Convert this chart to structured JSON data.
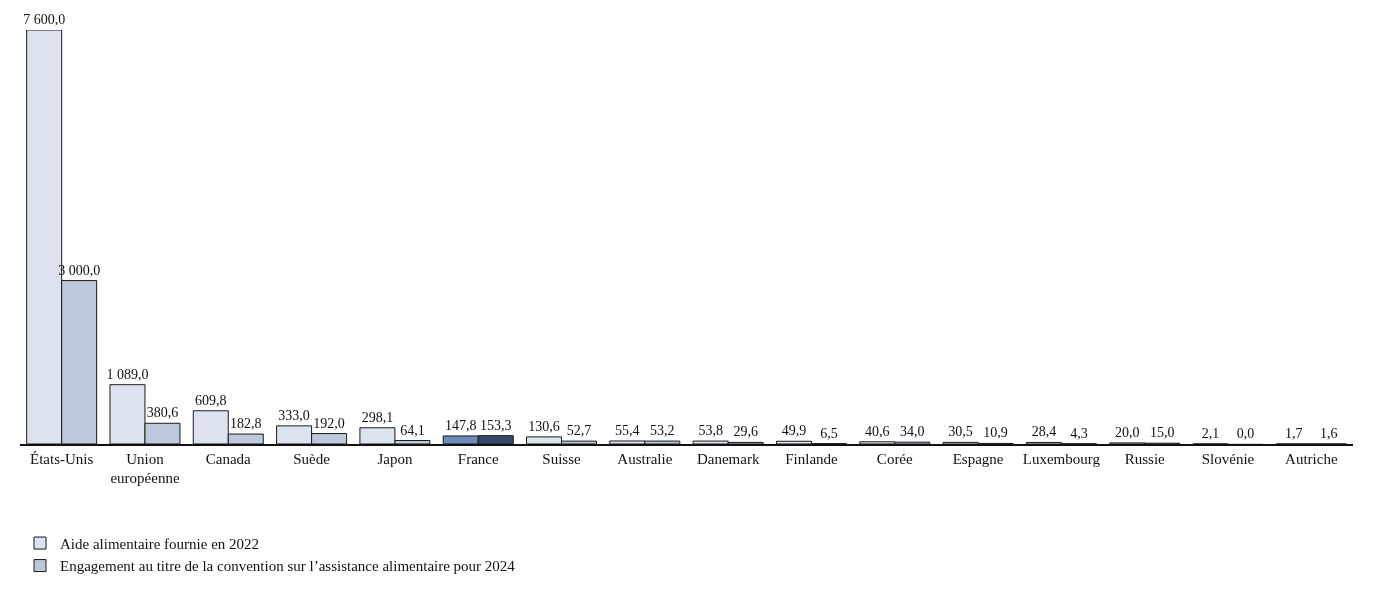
{
  "chart_data": {
    "type": "bar",
    "categories": [
      "États-Unis",
      "Union européenne",
      "Canada",
      "Suède",
      "Japon",
      "France",
      "Suisse",
      "Australie",
      "Danemark",
      "Finlande",
      "Corée",
      "Espagne",
      "Luxembourg",
      "Russie",
      "Slovénie",
      "Autriche"
    ],
    "series": [
      {
        "name": "Aide alimentaire fournie en 2022",
        "colors": [
          "#dde3ee",
          "#dde3ee",
          "#dde3ee",
          "#dde3ee",
          "#dde3ee",
          "#6b8cb8",
          "#dde3ee",
          "#dde3ee",
          "#dde3ee",
          "#dde3ee",
          "#dde3ee",
          "#dde3ee",
          "#dde3ee",
          "#dde3ee",
          "#dde3ee",
          "#dde3ee"
        ],
        "values": [
          7600,
          1089,
          609.8,
          333,
          298.1,
          147.8,
          130.6,
          55.4,
          53.8,
          49.9,
          40.6,
          30.5,
          28.4,
          20,
          2.1,
          1.7
        ],
        "value_labels": [
          "7 600,0",
          "1 089,0",
          "609,8",
          "333,0",
          "298,1",
          "147,8",
          "130,6",
          "55,4",
          "53,8",
          "49,9",
          "40,6",
          "30,5",
          "28,4",
          "20,0",
          "2,1",
          "1,7"
        ]
      },
      {
        "name": "Engagement au titre de la convention sur l’assistance alimentaire pour 2024",
        "colors": [
          "#bcc8dc",
          "#bcc8dc",
          "#bcc8dc",
          "#bcc8dc",
          "#bcc8dc",
          "#34496b",
          "#bcc8dc",
          "#bcc8dc",
          "#bcc8dc",
          "#bcc8dc",
          "#bcc8dc",
          "#bcc8dc",
          "#bcc8dc",
          "#bcc8dc",
          "#bcc8dc",
          "#bcc8dc"
        ],
        "values": [
          3000,
          380.6,
          182.8,
          192,
          64.1,
          153.3,
          52.7,
          53.2,
          29.6,
          6.5,
          34,
          10.9,
          4.3,
          15,
          0,
          1.6
        ],
        "value_labels": [
          "3 000,0",
          "380,6",
          "182,8",
          "192,0",
          "64,1",
          "153,3",
          "52,7",
          "53,2",
          "29,6",
          "6,5",
          "34,0",
          "10,9",
          "4,3",
          "15,0",
          "0,0",
          "1,6"
        ]
      }
    ],
    "ylim": [
      0,
      7600
    ],
    "tick_labels": "x",
    "grid": false,
    "legend": "bottom left"
  }
}
